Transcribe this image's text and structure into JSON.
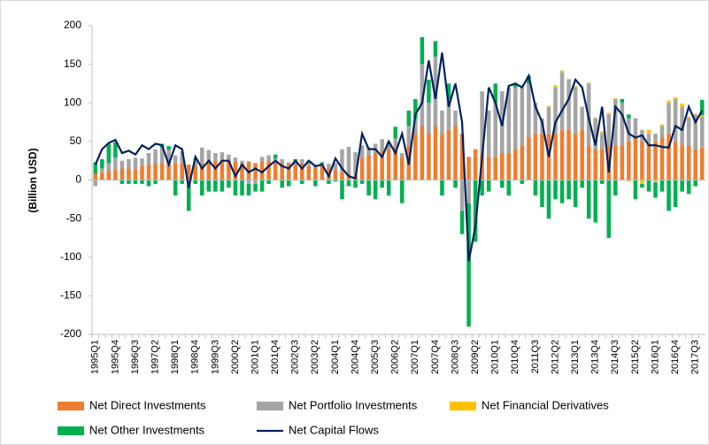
{
  "chart_data": {
    "type": "bar",
    "stacked": true,
    "y_label": "(Billion USD)",
    "categories": [
      "1995Q1",
      null,
      null,
      "1995Q4",
      null,
      null,
      "1996Q3",
      null,
      null,
      "1997Q2",
      null,
      null,
      "1998Q1",
      null,
      null,
      "1998Q4",
      null,
      null,
      "1999Q3",
      null,
      null,
      "2000Q2",
      null,
      null,
      "2001Q1",
      null,
      null,
      "2001Q4",
      null,
      null,
      "2002Q3",
      null,
      null,
      "2003Q2",
      null,
      null,
      "2004Q1",
      null,
      null,
      "2004Q4",
      null,
      null,
      "2005Q3",
      null,
      null,
      "2006Q2",
      null,
      null,
      "2007Q1",
      null,
      null,
      "2007Q4",
      null,
      null,
      "2008Q3",
      null,
      null,
      "2009Q2",
      null,
      null,
      "2010Q1",
      null,
      null,
      "2010Q4",
      null,
      null,
      "2011Q3",
      null,
      null,
      "2012Q2",
      null,
      null,
      "2013Q1",
      null,
      null,
      "2013Q4",
      null,
      null,
      "2014Q3",
      null,
      null,
      "2015Q2",
      null,
      null,
      "2016Q1",
      null,
      null,
      "2016Q4",
      null,
      null,
      "2017Q3",
      null
    ],
    "series": [
      {
        "name": "Net Direct Investments",
        "color": "#ed7d31",
        "type": "bar",
        "values": [
          8,
          10,
          12,
          14,
          15,
          15,
          14,
          18,
          20,
          22,
          22,
          24,
          22,
          22,
          20,
          18,
          22,
          24,
          25,
          24,
          25,
          24,
          22,
          24,
          22,
          25,
          24,
          25,
          22,
          20,
          20,
          22,
          18,
          16,
          18,
          15,
          14,
          10,
          8,
          6,
          30,
          32,
          35,
          38,
          40,
          42,
          30,
          45,
          60,
          70,
          60,
          70,
          60,
          65,
          70,
          60,
          30,
          40,
          35,
          30,
          30,
          35,
          35,
          40,
          45,
          55,
          60,
          60,
          60,
          60,
          65,
          65,
          60,
          65,
          45,
          40,
          40,
          45,
          45,
          45,
          50,
          55,
          50,
          45,
          50,
          55,
          60,
          50,
          45,
          45,
          40,
          42
        ]
      },
      {
        "name": "Net Portfolio Investments",
        "color": "#a5a5a5",
        "type": "bar",
        "values": [
          -8,
          5,
          10,
          15,
          10,
          12,
          15,
          10,
          15,
          18,
          20,
          15,
          10,
          15,
          -5,
          10,
          20,
          15,
          10,
          12,
          8,
          5,
          3,
          -5,
          -5,
          5,
          8,
          3,
          5,
          3,
          2,
          5,
          4,
          2,
          3,
          6,
          8,
          30,
          35,
          30,
          15,
          10,
          12,
          15,
          10,
          12,
          5,
          25,
          20,
          80,
          40,
          90,
          30,
          40,
          20,
          -40,
          -30,
          0,
          80,
          60,
          70,
          80,
          85,
          80,
          75,
          70,
          40,
          20,
          35,
          60,
          75,
          65,
          60,
          30,
          80,
          40,
          20,
          40,
          60,
          55,
          30,
          25,
          15,
          15,
          10,
          15,
          40,
          55,
          50,
          35,
          45,
          40
        ]
      },
      {
        "name": "Net Financial Derivatives",
        "color": "#ffc000",
        "type": "bar",
        "values": [
          0,
          0,
          0,
          0,
          0,
          0,
          0,
          0,
          0,
          0,
          0,
          0,
          0,
          0,
          0,
          0,
          0,
          0,
          0,
          0,
          0,
          0,
          0,
          0,
          0,
          0,
          0,
          0,
          0,
          0,
          0,
          0,
          0,
          0,
          0,
          0,
          0,
          0,
          0,
          0,
          0,
          0,
          0,
          0,
          0,
          0,
          0,
          0,
          0,
          0,
          0,
          0,
          0,
          0,
          0,
          0,
          0,
          0,
          0,
          0,
          0,
          0,
          0,
          0,
          0,
          0,
          0,
          0,
          1,
          3,
          2,
          1,
          2,
          0,
          1,
          1,
          3,
          2,
          1,
          0,
          -2,
          0,
          -5,
          5,
          -3,
          2,
          3,
          2,
          4,
          2,
          1,
          2
        ]
      },
      {
        "name": "Net Other Investments",
        "color": "#00b050",
        "type": "bar",
        "values": [
          15,
          12,
          25,
          20,
          -5,
          -5,
          -5,
          -5,
          -8,
          -5,
          5,
          5,
          -20,
          -5,
          -35,
          -5,
          -20,
          -15,
          -15,
          -15,
          -10,
          -20,
          -20,
          -15,
          -10,
          -15,
          -5,
          5,
          -10,
          -8,
          5,
          -5,
          3,
          -8,
          2,
          -5,
          -2,
          -25,
          -8,
          -10,
          -5,
          -20,
          -25,
          -10,
          -20,
          15,
          -30,
          20,
          25,
          35,
          30,
          20,
          -20,
          20,
          -10,
          -30,
          -160,
          -80,
          -20,
          -15,
          25,
          -10,
          -20,
          5,
          -5,
          10,
          -20,
          -35,
          -50,
          -25,
          -30,
          -25,
          -35,
          -10,
          -50,
          -55,
          -5,
          -75,
          -20,
          5,
          5,
          -25,
          -5,
          -15,
          -20,
          -15,
          -40,
          -35,
          -15,
          -18,
          -8,
          20
        ]
      },
      {
        "name": "Net Capital Flows",
        "color": "#002060",
        "type": "line",
        "values": [
          20,
          40,
          48,
          52,
          35,
          38,
          33,
          45,
          40,
          47,
          45,
          20,
          45,
          40,
          -10,
          30,
          15,
          25,
          15,
          25,
          25,
          5,
          20,
          10,
          15,
          10,
          18,
          25,
          18,
          15,
          25,
          15,
          25,
          18,
          20,
          5,
          28,
          15,
          5,
          2,
          60,
          40,
          40,
          30,
          50,
          35,
          60,
          20,
          85,
          100,
          155,
          105,
          165,
          95,
          125,
          75,
          -105,
          -60,
          30,
          120,
          100,
          70,
          122,
          125,
          120,
          135,
          95,
          75,
          30,
          75,
          90,
          105,
          130,
          120,
          80,
          45,
          95,
          10,
          95,
          85,
          60,
          55,
          58,
          45,
          45,
          43,
          42,
          70,
          65,
          95,
          75,
          90
        ]
      }
    ],
    "ylim": [
      -200,
      200
    ],
    "yticks": [
      -200,
      -150,
      -100,
      -50,
      0,
      50,
      100,
      150,
      200
    ],
    "grid": false
  }
}
